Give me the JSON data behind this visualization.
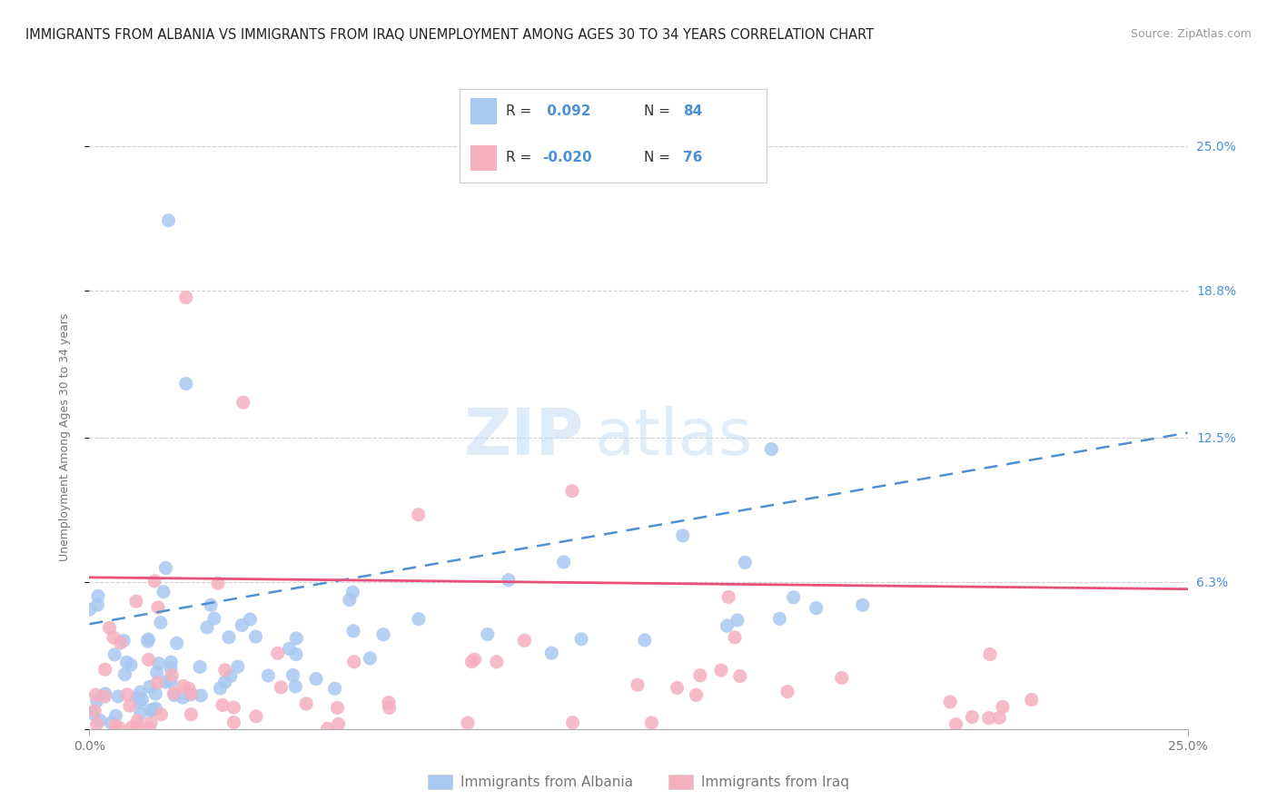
{
  "title": "IMMIGRANTS FROM ALBANIA VS IMMIGRANTS FROM IRAQ UNEMPLOYMENT AMONG AGES 30 TO 34 YEARS CORRELATION CHART",
  "source": "Source: ZipAtlas.com",
  "ylabel_text": "Unemployment Among Ages 30 to 34 years",
  "legend_labels": [
    "Immigrants from Albania",
    "Immigrants from Iraq"
  ],
  "albania_color": "#a8c8f0",
  "iraq_color": "#f5b0c0",
  "albania_trend_color": "#5090d0",
  "iraq_trend_color": "#e8507a",
  "watermark_zip": "ZIP",
  "watermark_atlas": "atlas",
  "xmin": 0.0,
  "xmax": 0.25,
  "ymin": 0.0,
  "ymax": 0.25,
  "yticks": [
    0.0,
    0.063,
    0.125,
    0.188,
    0.25
  ],
  "ytick_labels_right": [
    "0.0%",
    "6.3%",
    "12.5%",
    "18.8%",
    "25.0%"
  ],
  "title_fontsize": 10.5,
  "source_fontsize": 9,
  "axis_label_fontsize": 9,
  "tick_label_fontsize": 10,
  "legend_fontsize": 11,
  "background_color": "#ffffff",
  "grid_color": "#d0d0d0",
  "blue_color": "#4a90d9",
  "pink_color": "#e8507a",
  "dark_color": "#333333",
  "gray_color": "#777777",
  "albania_trend_start_y": 0.045,
  "albania_trend_end_y": 0.127,
  "iraq_trend_start_y": 0.065,
  "iraq_trend_end_y": 0.06
}
